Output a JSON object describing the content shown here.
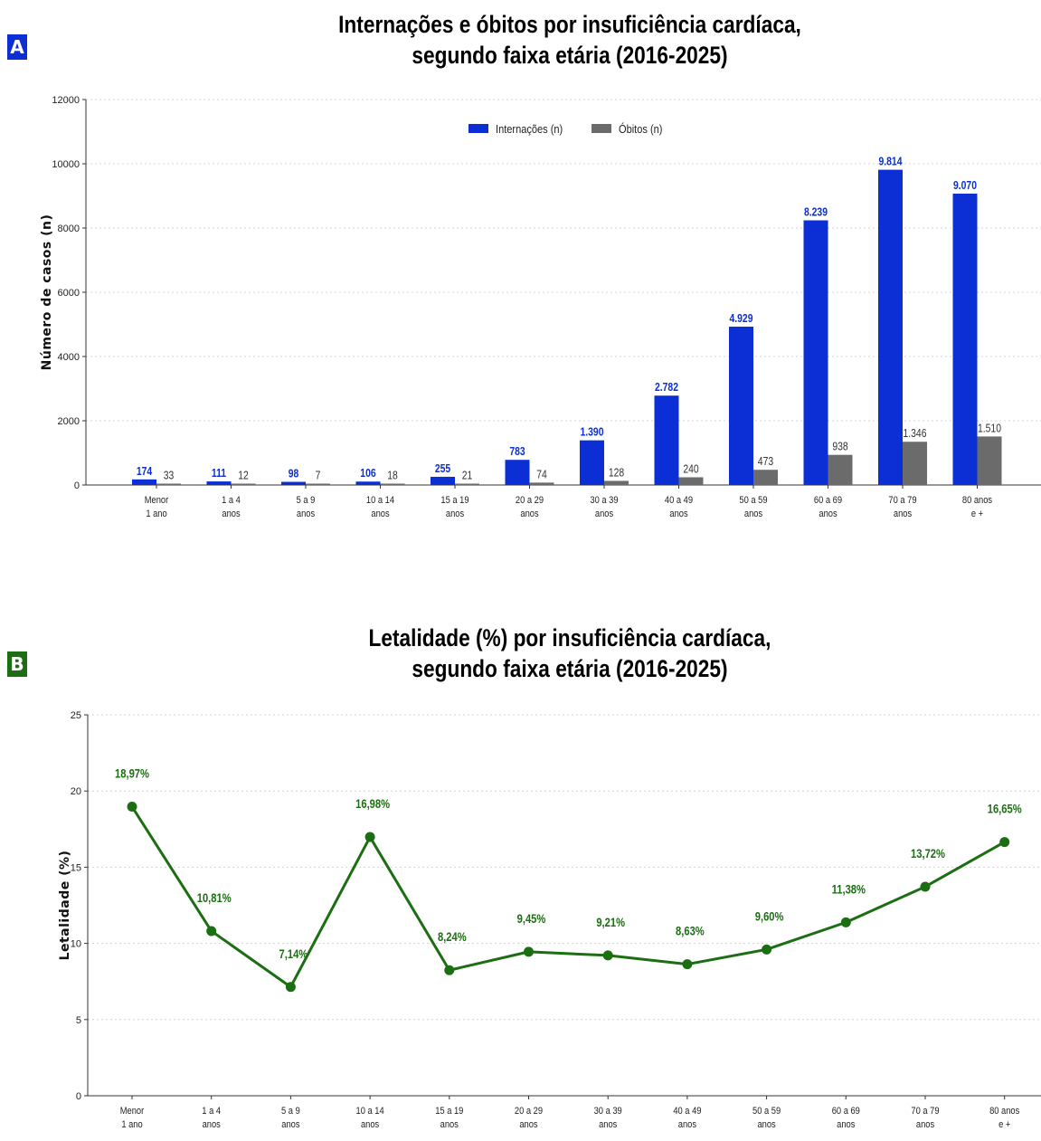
{
  "colors": {
    "admissions": "#0b2fd4",
    "deaths": "#6b6b6b",
    "lethality": "#1b6e12",
    "panel_a": "#0b2fd4",
    "panel_b": "#1b6e12"
  },
  "panel_a": {
    "letter": "A",
    "title_line1": "Internações e óbitos por insuficiência cardíaca,",
    "title_line2": "segundo faixa etária (2016-2025)"
  },
  "panel_b": {
    "letter": "B",
    "title_line1": "Letalidade (%) por insuficiência cardíaca,",
    "title_line2": "segundo faixa etária (2016-2025)"
  },
  "chart_data": [
    {
      "type": "bar",
      "title": "Internações e óbitos por insuficiência cardíaca, segundo faixa etária (2016-2025)",
      "ylabel": "Número de casos (n)",
      "ylim": [
        0,
        12000
      ],
      "yticks": [
        0,
        2000,
        4000,
        6000,
        8000,
        10000,
        12000
      ],
      "grid": true,
      "legend": "top-center",
      "categories": [
        [
          "Menor",
          "1 ano"
        ],
        [
          "1 a 4",
          "anos"
        ],
        [
          "5 a 9",
          "anos"
        ],
        [
          "10 a 14",
          "anos"
        ],
        [
          "15 a 19",
          "anos"
        ],
        [
          "20 a 29",
          "anos"
        ],
        [
          "30 a 39",
          "anos"
        ],
        [
          "40 a 49",
          "anos"
        ],
        [
          "50 a 59",
          "anos"
        ],
        [
          "60 a 69",
          "anos"
        ],
        [
          "70 a 79",
          "anos"
        ],
        [
          "80 anos",
          "e +"
        ]
      ],
      "series": [
        {
          "name": "Internações (n)",
          "values": [
            174,
            111,
            98,
            106,
            255,
            783,
            1390,
            2782,
            4929,
            8239,
            9814,
            9070
          ],
          "labels": [
            "174",
            "111",
            "98",
            "106",
            "255",
            "783",
            "1.390",
            "2.782",
            "4.929",
            "8.239",
            "9.814",
            "9.070"
          ]
        },
        {
          "name": "Óbitos (n)",
          "values": [
            33,
            12,
            7,
            18,
            21,
            74,
            128,
            240,
            473,
            938,
            1346,
            1510
          ],
          "labels": [
            "33",
            "12",
            "7",
            "18",
            "21",
            "74",
            "128",
            "240",
            "473",
            "938",
            "1.346",
            "1.510"
          ]
        }
      ]
    },
    {
      "type": "line",
      "title": "Letalidade (%) por insuficiência cardíaca, segundo faixa etária (2016-2025)",
      "ylabel": "Letalidade (%)",
      "ylim": [
        0,
        25
      ],
      "yticks": [
        0,
        5,
        10,
        15,
        20,
        25
      ],
      "grid": true,
      "categories": [
        [
          "Menor",
          "1 ano"
        ],
        [
          "1 a 4",
          "anos"
        ],
        [
          "5 a 9",
          "anos"
        ],
        [
          "10 a 14",
          "anos"
        ],
        [
          "15 a 19",
          "anos"
        ],
        [
          "20 a 29",
          "anos"
        ],
        [
          "30 a 39",
          "anos"
        ],
        [
          "40 a 49",
          "anos"
        ],
        [
          "50 a 59",
          "anos"
        ],
        [
          "60 a 69",
          "anos"
        ],
        [
          "70 a 79",
          "anos"
        ],
        [
          "80 anos",
          "e +"
        ]
      ],
      "values": [
        18.97,
        10.81,
        7.14,
        16.98,
        8.24,
        9.45,
        9.21,
        8.63,
        9.6,
        11.38,
        13.72,
        16.65
      ],
      "labels": [
        "18,97%",
        "10,81%",
        "7,14%",
        "16,98%",
        "8,24%",
        "9,45%",
        "9,21%",
        "8,63%",
        "9,60%",
        "11,38%",
        "13,72%",
        "16,65%"
      ]
    }
  ]
}
